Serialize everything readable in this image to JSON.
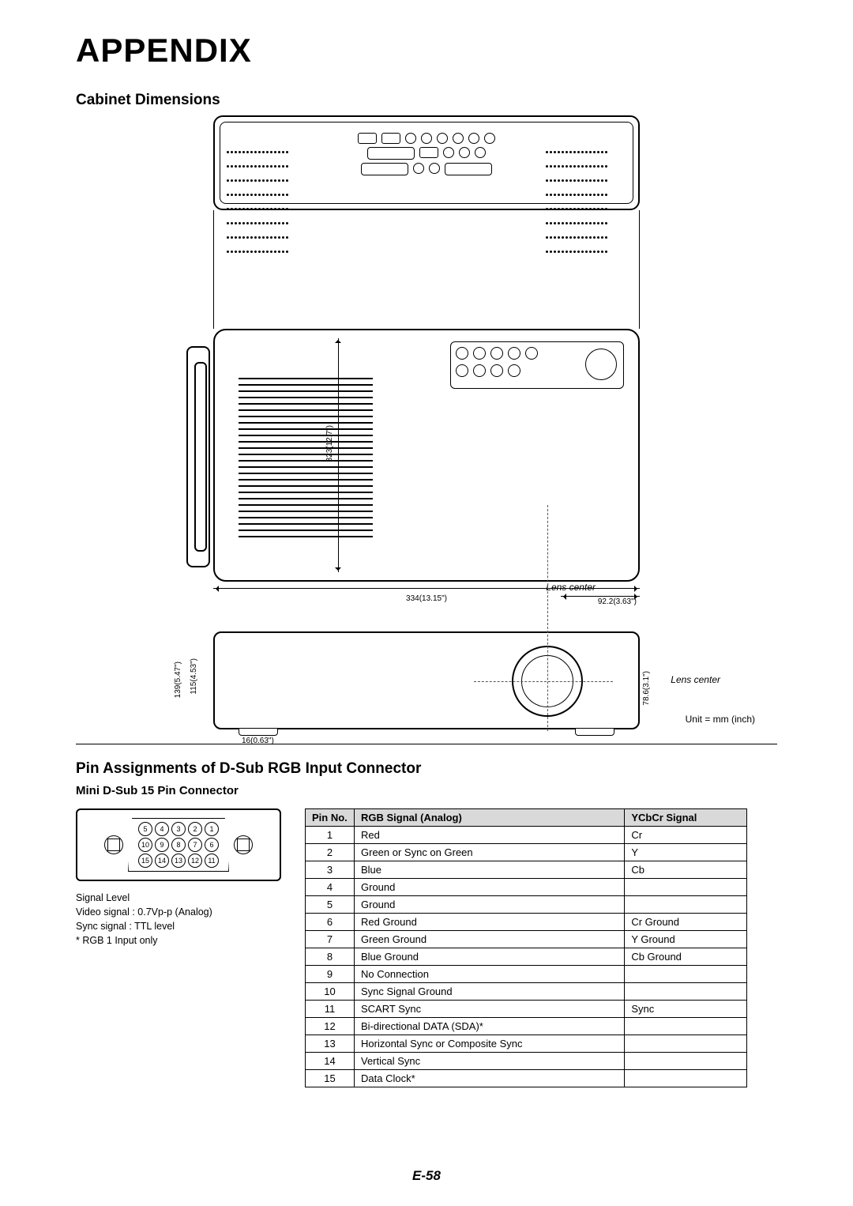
{
  "page": {
    "title": "APPENDIX",
    "number": "E-58"
  },
  "dimensions_section": {
    "heading": "Cabinet Dimensions",
    "unit_note": "Unit = mm (inch)",
    "lens_center_label": "Lens center",
    "measurements": {
      "width": "334(13.15\")",
      "height": "323(12.7\")",
      "lens_offset_x": "92.2(3.63\")",
      "front_height_outer": "139(5.47\")",
      "front_height_inner": "115(4.53\")",
      "lens_height": "78.6(3.1\")",
      "foot_depth": "16(0.63\")"
    }
  },
  "pin_section": {
    "heading": "Pin Assignments of D-Sub RGB Input Connector",
    "subheading": "Mini D-Sub 15 Pin Connector",
    "pin_layout_rows": [
      [
        "5",
        "4",
        "3",
        "2",
        "1"
      ],
      [
        "10",
        "9",
        "8",
        "7",
        "6"
      ],
      [
        "15",
        "14",
        "13",
        "12",
        "11"
      ]
    ],
    "signal_info": {
      "l1": "Signal Level",
      "l2": "Video signal : 0.7Vp-p (Analog)",
      "l3": "Sync signal : TTL level",
      "l4": "* RGB 1 Input only"
    },
    "table": {
      "columns": [
        "Pin No.",
        "RGB Signal (Analog)",
        "YCbCr Signal"
      ],
      "rows": [
        [
          "1",
          "Red",
          "Cr"
        ],
        [
          "2",
          "Green or Sync on Green",
          "Y"
        ],
        [
          "3",
          "Blue",
          "Cb"
        ],
        [
          "4",
          "Ground",
          ""
        ],
        [
          "5",
          "Ground",
          ""
        ],
        [
          "6",
          "Red Ground",
          "Cr Ground"
        ],
        [
          "7",
          "Green Ground",
          "Y Ground"
        ],
        [
          "8",
          "Blue Ground",
          "Cb Ground"
        ],
        [
          "9",
          "No Connection",
          ""
        ],
        [
          "10",
          "Sync Signal Ground",
          ""
        ],
        [
          "11",
          "SCART Sync",
          "Sync"
        ],
        [
          "12",
          "Bi-directional DATA (SDA)*",
          ""
        ],
        [
          "13",
          "Horizontal Sync or Composite Sync",
          ""
        ],
        [
          "14",
          "Vertical Sync",
          ""
        ],
        [
          "15",
          "Data Clock*",
          ""
        ]
      ]
    }
  },
  "colors": {
    "page_bg": "#ffffff",
    "text": "#000000",
    "table_header_bg": "#d9d9d9",
    "border": "#000000"
  },
  "typography": {
    "title_fontsize_pt": 32,
    "h2_fontsize_pt": 14,
    "h3_fontsize_pt": 11,
    "body_fontsize_pt": 10,
    "dim_label_fontsize_pt": 7
  }
}
